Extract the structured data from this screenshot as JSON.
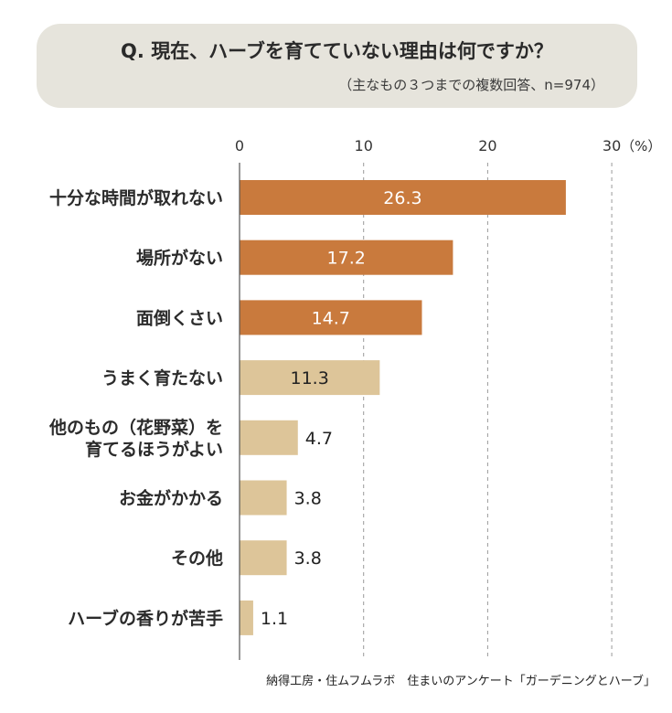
{
  "question": {
    "title": "Q. 現在、ハーブを育てていない理由は何ですか？",
    "note": "（主なもの３つまでの複数回答、n=974）"
  },
  "source": "納得工房・住ムフムラボ　住まいのアンケート「ガーデニングとハーブ」",
  "colors": {
    "highlight": "#c97a3d",
    "normal": "#ddc599",
    "value_on_bar": "#ffffff",
    "value_outside": "#222222"
  },
  "chart_data": {
    "type": "bar",
    "orientation": "horizontal",
    "title": "",
    "xlabel": "",
    "ylabel": "",
    "unit_label": "（%）",
    "xlim": [
      0,
      30
    ],
    "ticks": [
      0,
      10,
      20,
      30
    ],
    "grid": true,
    "categories": [
      [
        "十分な時間が取れない"
      ],
      [
        "場所がない"
      ],
      [
        "面倒くさい"
      ],
      [
        "うまく育たない"
      ],
      [
        "他のもの（花野菜）を",
        "育てるほうがよい"
      ],
      [
        "お金がかかる"
      ],
      [
        "その他"
      ],
      [
        "ハーブの香りが苦手"
      ]
    ],
    "values": [
      26.3,
      17.2,
      14.7,
      11.3,
      4.7,
      3.8,
      3.8,
      1.1
    ],
    "highlighted": [
      true,
      true,
      true,
      false,
      false,
      false,
      false,
      false
    ]
  }
}
